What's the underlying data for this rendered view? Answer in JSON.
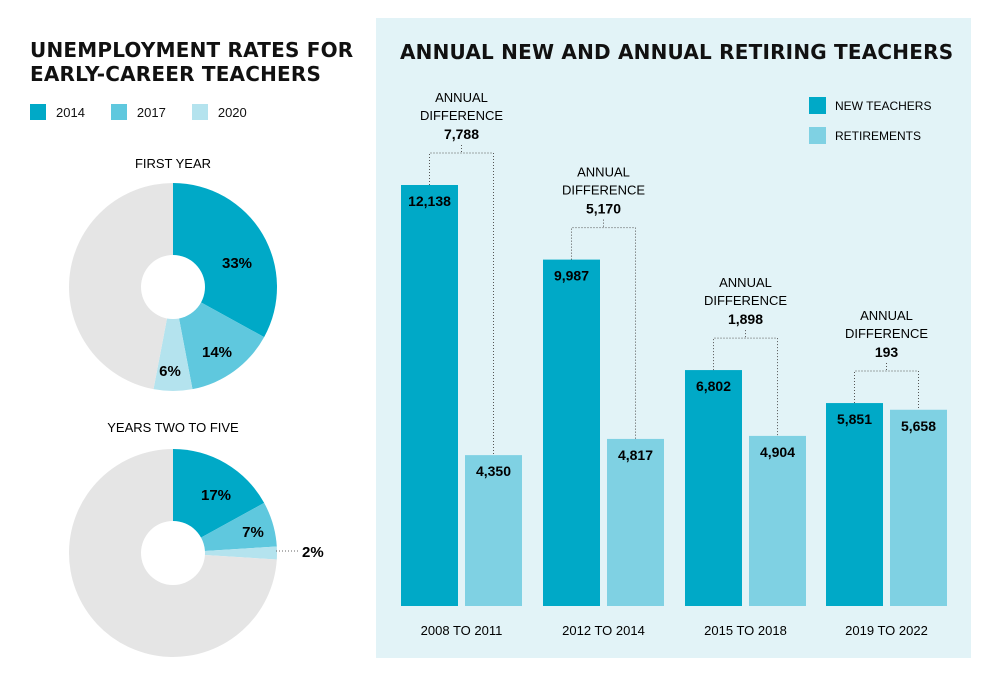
{
  "left": {
    "title_line1": "UNEMPLOYMENT RATES FOR",
    "title_line2": "EARLY-CAREER TEACHERS",
    "legend": [
      {
        "label": "2014",
        "color": "#00a9c7"
      },
      {
        "label": "2017",
        "color": "#5fc8de"
      },
      {
        "label": "2020",
        "color": "#b4e3ee"
      }
    ]
  },
  "right": {
    "title": "ANNUAL NEW AND ANNUAL RETIRING TEACHERS",
    "legend": [
      {
        "label": "NEW TEACHERS",
        "color": "#00a9c7"
      },
      {
        "label": "RETIREMENTS",
        "color": "#7fd1e3"
      }
    ]
  },
  "colors": {
    "remainder": "#e5e5e5",
    "panel": "#e2f3f7"
  },
  "chart_data": [
    {
      "type": "pie",
      "title": "FIRST YEAR",
      "slices": [
        {
          "label": "2014",
          "value": 33,
          "text": "33%"
        },
        {
          "label": "2017",
          "value": 14,
          "text": "14%"
        },
        {
          "label": "2020",
          "value": 6,
          "text": "6%"
        }
      ]
    },
    {
      "type": "pie",
      "title": "YEARS TWO TO FIVE",
      "slices": [
        {
          "label": "2014",
          "value": 17,
          "text": "17%"
        },
        {
          "label": "2017",
          "value": 7,
          "text": "7%"
        },
        {
          "label": "2020",
          "value": 2,
          "text": "2%"
        }
      ]
    },
    {
      "type": "bar",
      "title": "ANNUAL NEW AND ANNUAL RETIRING TEACHERS",
      "categories": [
        "2008 TO 2011",
        "2012 TO 2014",
        "2015 TO 2018",
        "2019 TO 2022"
      ],
      "series": [
        {
          "name": "NEW TEACHERS",
          "values": [
            12138,
            9987,
            6802,
            5851
          ],
          "labels": [
            "12,138",
            "9,987",
            "6,802",
            "5,851"
          ]
        },
        {
          "name": "RETIREMENTS",
          "values": [
            4350,
            4817,
            4904,
            5658
          ],
          "labels": [
            "4,350",
            "4,817",
            "4,904",
            "5,658"
          ]
        }
      ],
      "annotations": [
        {
          "line1": "ANNUAL",
          "line2": "DIFFERENCE",
          "value": "7,788"
        },
        {
          "line1": "ANNUAL",
          "line2": "DIFFERENCE",
          "value": "5,170"
        },
        {
          "line1": "ANNUAL",
          "line2": "DIFFERENCE",
          "value": "1,898"
        },
        {
          "line1": "ANNUAL",
          "line2": "DIFFERENCE",
          "value": "193"
        }
      ],
      "legend_position": "top-right",
      "grid": false
    }
  ]
}
